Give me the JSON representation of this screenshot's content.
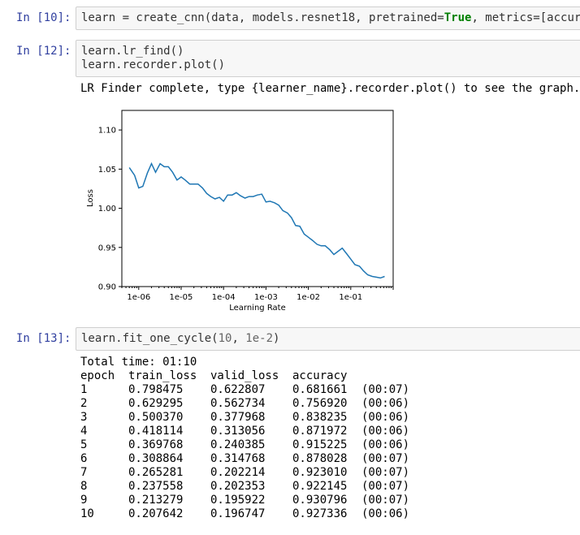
{
  "cells": [
    {
      "prompt": "In [10]:",
      "code": {
        "pre": "learn = create_cnn(data, models.resnet18, pretrained=",
        "kw": "True",
        "post": ", metrics=[accur"
      }
    },
    {
      "prompt": "In [12]:",
      "lines": [
        "learn.lr_find()",
        "learn.recorder.plot()"
      ],
      "output": "LR Finder complete, type {learner_name}.recorder.plot() to see the graph."
    },
    {
      "prompt": "In [13]:",
      "code": {
        "pre": "learn.fit_one_cycle(",
        "n1": "10",
        "mid": ", ",
        "n2": "1e-2",
        "post": ")"
      },
      "total_time": "Total time: 01:10"
    }
  ],
  "chart_data": {
    "type": "line",
    "xlabel": "Learning Rate",
    "ylabel": "Loss",
    "xscale": "log",
    "xticks": [
      "1e-06",
      "1e-05",
      "1e-04",
      "1e-03",
      "1e-02",
      "1e-01"
    ],
    "yticks": [
      "0.90",
      "0.95",
      "1.00",
      "1.05",
      "1.10"
    ],
    "ylim": [
      0.9,
      1.125
    ],
    "line_color": "#1f77b4",
    "series": [
      {
        "x": [
          6e-07,
          8e-07,
          1e-06,
          1.25e-06,
          1.6e-06,
          2e-06,
          2.5e-06,
          3.2e-06,
          4e-06,
          5e-06,
          6.3e-06,
          8e-06,
          1e-05,
          1.25e-05,
          1.6e-05,
          2e-05,
          2.5e-05,
          3.2e-05,
          4e-05,
          5e-05,
          6.3e-05,
          8e-05,
          0.0001,
          0.000125,
          0.00016,
          0.0002,
          0.00025,
          0.00032,
          0.0004,
          0.0005,
          0.00063,
          0.0008,
          0.001,
          0.00125,
          0.0016,
          0.002,
          0.0025,
          0.0032,
          0.004,
          0.005,
          0.0063,
          0.008,
          0.01,
          0.0125,
          0.016,
          0.02,
          0.025,
          0.032,
          0.04,
          0.05,
          0.063,
          0.08,
          0.1,
          0.125,
          0.16,
          0.2,
          0.25,
          0.32,
          0.4,
          0.5,
          0.63
        ],
        "y": [
          1.052,
          1.042,
          1.026,
          1.028,
          1.045,
          1.057,
          1.046,
          1.057,
          1.053,
          1.053,
          1.046,
          1.036,
          1.04,
          1.036,
          1.031,
          1.031,
          1.031,
          1.026,
          1.019,
          1.015,
          1.012,
          1.014,
          1.009,
          1.017,
          1.017,
          1.02,
          1.016,
          1.013,
          1.015,
          1.015,
          1.017,
          1.018,
          1.008,
          1.009,
          1.007,
          1.004,
          0.997,
          0.994,
          0.988,
          0.978,
          0.977,
          0.967,
          0.963,
          0.959,
          0.954,
          0.952,
          0.952,
          0.947,
          0.941,
          0.945,
          0.949,
          0.942,
          0.935,
          0.928,
          0.926,
          0.92,
          0.915,
          0.913,
          0.912,
          0.911,
          0.913
        ]
      }
    ]
  },
  "table": {
    "headers": [
      "epoch",
      "train_loss",
      "valid_loss",
      "accuracy",
      ""
    ],
    "rows": [
      [
        "1",
        "0.798475",
        "0.622807",
        "0.681661",
        "(00:07)"
      ],
      [
        "2",
        "0.629295",
        "0.562734",
        "0.756920",
        "(00:06)"
      ],
      [
        "3",
        "0.500370",
        "0.377968",
        "0.838235",
        "(00:06)"
      ],
      [
        "4",
        "0.418114",
        "0.313056",
        "0.871972",
        "(00:06)"
      ],
      [
        "5",
        "0.369768",
        "0.240385",
        "0.915225",
        "(00:06)"
      ],
      [
        "6",
        "0.308864",
        "0.314768",
        "0.878028",
        "(00:07)"
      ],
      [
        "7",
        "0.265281",
        "0.202214",
        "0.923010",
        "(00:07)"
      ],
      [
        "8",
        "0.237558",
        "0.202353",
        "0.922145",
        "(00:07)"
      ],
      [
        "9",
        "0.213279",
        "0.195922",
        "0.930796",
        "(00:07)"
      ],
      [
        "10",
        "0.207642",
        "0.196747",
        "0.927336",
        "(00:06)"
      ]
    ]
  }
}
